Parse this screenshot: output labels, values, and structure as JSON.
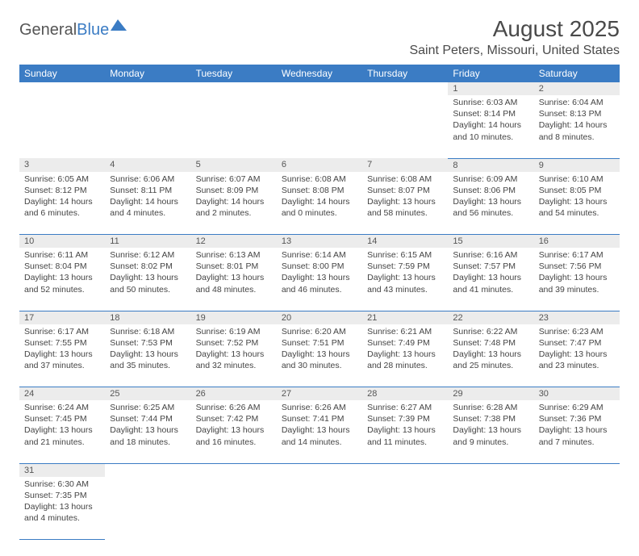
{
  "brand": {
    "part1": "General",
    "part2": "Blue"
  },
  "title": "August 2025",
  "location": "Saint Peters, Missouri, United States",
  "weekdays": [
    "Sunday",
    "Monday",
    "Tuesday",
    "Wednesday",
    "Thursday",
    "Friday",
    "Saturday"
  ],
  "colors": {
    "header_bg": "#3b7cc4",
    "header_fg": "#ffffff",
    "daynum_bg": "#ececec",
    "border": "#3b7cc4",
    "text": "#444444"
  },
  "weeks": [
    [
      null,
      null,
      null,
      null,
      null,
      {
        "n": "1",
        "sunrise": "6:03 AM",
        "sunset": "8:14 PM",
        "day_h": 14,
        "day_m": 10
      },
      {
        "n": "2",
        "sunrise": "6:04 AM",
        "sunset": "8:13 PM",
        "day_h": 14,
        "day_m": 8
      }
    ],
    [
      {
        "n": "3",
        "sunrise": "6:05 AM",
        "sunset": "8:12 PM",
        "day_h": 14,
        "day_m": 6
      },
      {
        "n": "4",
        "sunrise": "6:06 AM",
        "sunset": "8:11 PM",
        "day_h": 14,
        "day_m": 4
      },
      {
        "n": "5",
        "sunrise": "6:07 AM",
        "sunset": "8:09 PM",
        "day_h": 14,
        "day_m": 2
      },
      {
        "n": "6",
        "sunrise": "6:08 AM",
        "sunset": "8:08 PM",
        "day_h": 14,
        "day_m": 0
      },
      {
        "n": "7",
        "sunrise": "6:08 AM",
        "sunset": "8:07 PM",
        "day_h": 13,
        "day_m": 58
      },
      {
        "n": "8",
        "sunrise": "6:09 AM",
        "sunset": "8:06 PM",
        "day_h": 13,
        "day_m": 56
      },
      {
        "n": "9",
        "sunrise": "6:10 AM",
        "sunset": "8:05 PM",
        "day_h": 13,
        "day_m": 54
      }
    ],
    [
      {
        "n": "10",
        "sunrise": "6:11 AM",
        "sunset": "8:04 PM",
        "day_h": 13,
        "day_m": 52
      },
      {
        "n": "11",
        "sunrise": "6:12 AM",
        "sunset": "8:02 PM",
        "day_h": 13,
        "day_m": 50
      },
      {
        "n": "12",
        "sunrise": "6:13 AM",
        "sunset": "8:01 PM",
        "day_h": 13,
        "day_m": 48
      },
      {
        "n": "13",
        "sunrise": "6:14 AM",
        "sunset": "8:00 PM",
        "day_h": 13,
        "day_m": 46
      },
      {
        "n": "14",
        "sunrise": "6:15 AM",
        "sunset": "7:59 PM",
        "day_h": 13,
        "day_m": 43
      },
      {
        "n": "15",
        "sunrise": "6:16 AM",
        "sunset": "7:57 PM",
        "day_h": 13,
        "day_m": 41
      },
      {
        "n": "16",
        "sunrise": "6:17 AM",
        "sunset": "7:56 PM",
        "day_h": 13,
        "day_m": 39
      }
    ],
    [
      {
        "n": "17",
        "sunrise": "6:17 AM",
        "sunset": "7:55 PM",
        "day_h": 13,
        "day_m": 37
      },
      {
        "n": "18",
        "sunrise": "6:18 AM",
        "sunset": "7:53 PM",
        "day_h": 13,
        "day_m": 35
      },
      {
        "n": "19",
        "sunrise": "6:19 AM",
        "sunset": "7:52 PM",
        "day_h": 13,
        "day_m": 32
      },
      {
        "n": "20",
        "sunrise": "6:20 AM",
        "sunset": "7:51 PM",
        "day_h": 13,
        "day_m": 30
      },
      {
        "n": "21",
        "sunrise": "6:21 AM",
        "sunset": "7:49 PM",
        "day_h": 13,
        "day_m": 28
      },
      {
        "n": "22",
        "sunrise": "6:22 AM",
        "sunset": "7:48 PM",
        "day_h": 13,
        "day_m": 25
      },
      {
        "n": "23",
        "sunrise": "6:23 AM",
        "sunset": "7:47 PM",
        "day_h": 13,
        "day_m": 23
      }
    ],
    [
      {
        "n": "24",
        "sunrise": "6:24 AM",
        "sunset": "7:45 PM",
        "day_h": 13,
        "day_m": 21
      },
      {
        "n": "25",
        "sunrise": "6:25 AM",
        "sunset": "7:44 PM",
        "day_h": 13,
        "day_m": 18
      },
      {
        "n": "26",
        "sunrise": "6:26 AM",
        "sunset": "7:42 PM",
        "day_h": 13,
        "day_m": 16
      },
      {
        "n": "27",
        "sunrise": "6:26 AM",
        "sunset": "7:41 PM",
        "day_h": 13,
        "day_m": 14
      },
      {
        "n": "28",
        "sunrise": "6:27 AM",
        "sunset": "7:39 PM",
        "day_h": 13,
        "day_m": 11
      },
      {
        "n": "29",
        "sunrise": "6:28 AM",
        "sunset": "7:38 PM",
        "day_h": 13,
        "day_m": 9
      },
      {
        "n": "30",
        "sunrise": "6:29 AM",
        "sunset": "7:36 PM",
        "day_h": 13,
        "day_m": 7
      }
    ],
    [
      {
        "n": "31",
        "sunrise": "6:30 AM",
        "sunset": "7:35 PM",
        "day_h": 13,
        "day_m": 4
      },
      null,
      null,
      null,
      null,
      null,
      null
    ]
  ],
  "labels": {
    "sunrise": "Sunrise:",
    "sunset": "Sunset:",
    "daylight": "Daylight:",
    "hours": "hours",
    "and": "and",
    "minutes": "minutes."
  }
}
